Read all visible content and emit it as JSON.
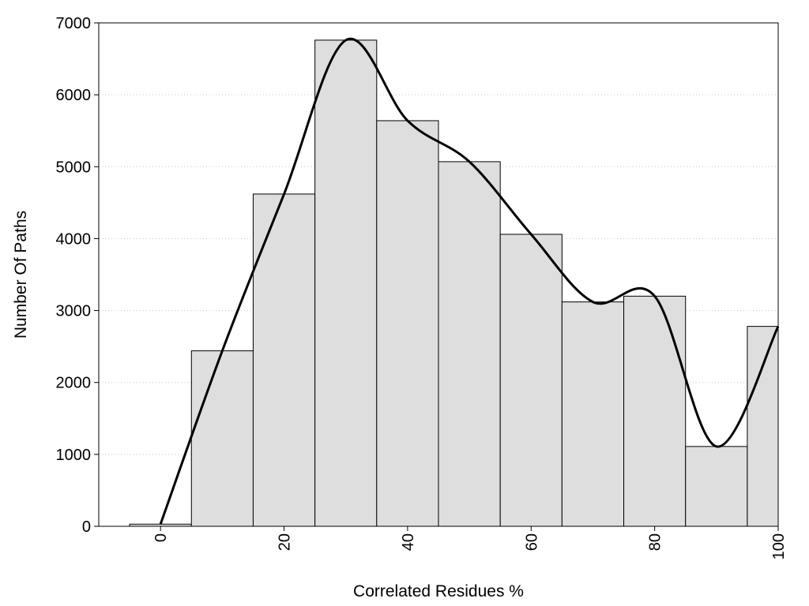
{
  "chart_data": {
    "type": "bar",
    "title": "",
    "xlabel": "Correlated Residues %",
    "ylabel": "Number Of Paths",
    "x": [
      0,
      10,
      20,
      30,
      40,
      50,
      60,
      70,
      80,
      90,
      100
    ],
    "values": [
      30,
      2440,
      4620,
      6760,
      5640,
      5070,
      4060,
      3120,
      3200,
      1110,
      2780
    ],
    "bin_width": 10,
    "xlim": [
      -10,
      100
    ],
    "ylim": [
      0,
      7000
    ],
    "xticks": [
      "0",
      "20",
      "40",
      "60",
      "80",
      "100"
    ],
    "yticks": [
      "0",
      "1000",
      "2000",
      "3000",
      "4000",
      "5000",
      "6000",
      "7000"
    ],
    "grid": "horizontal dotted",
    "overlay": {
      "type": "line",
      "smooth": true,
      "x": [
        0,
        10,
        20,
        30,
        40,
        50,
        60,
        70,
        80,
        90,
        100
      ],
      "y": [
        30,
        2440,
        4620,
        6760,
        5640,
        5070,
        4060,
        3120,
        3200,
        1110,
        2780
      ]
    },
    "colors": {
      "bar_fill": "#dedede",
      "bar_stroke": "#000000",
      "line": "#000000",
      "grid": "#c8c8c8"
    }
  }
}
